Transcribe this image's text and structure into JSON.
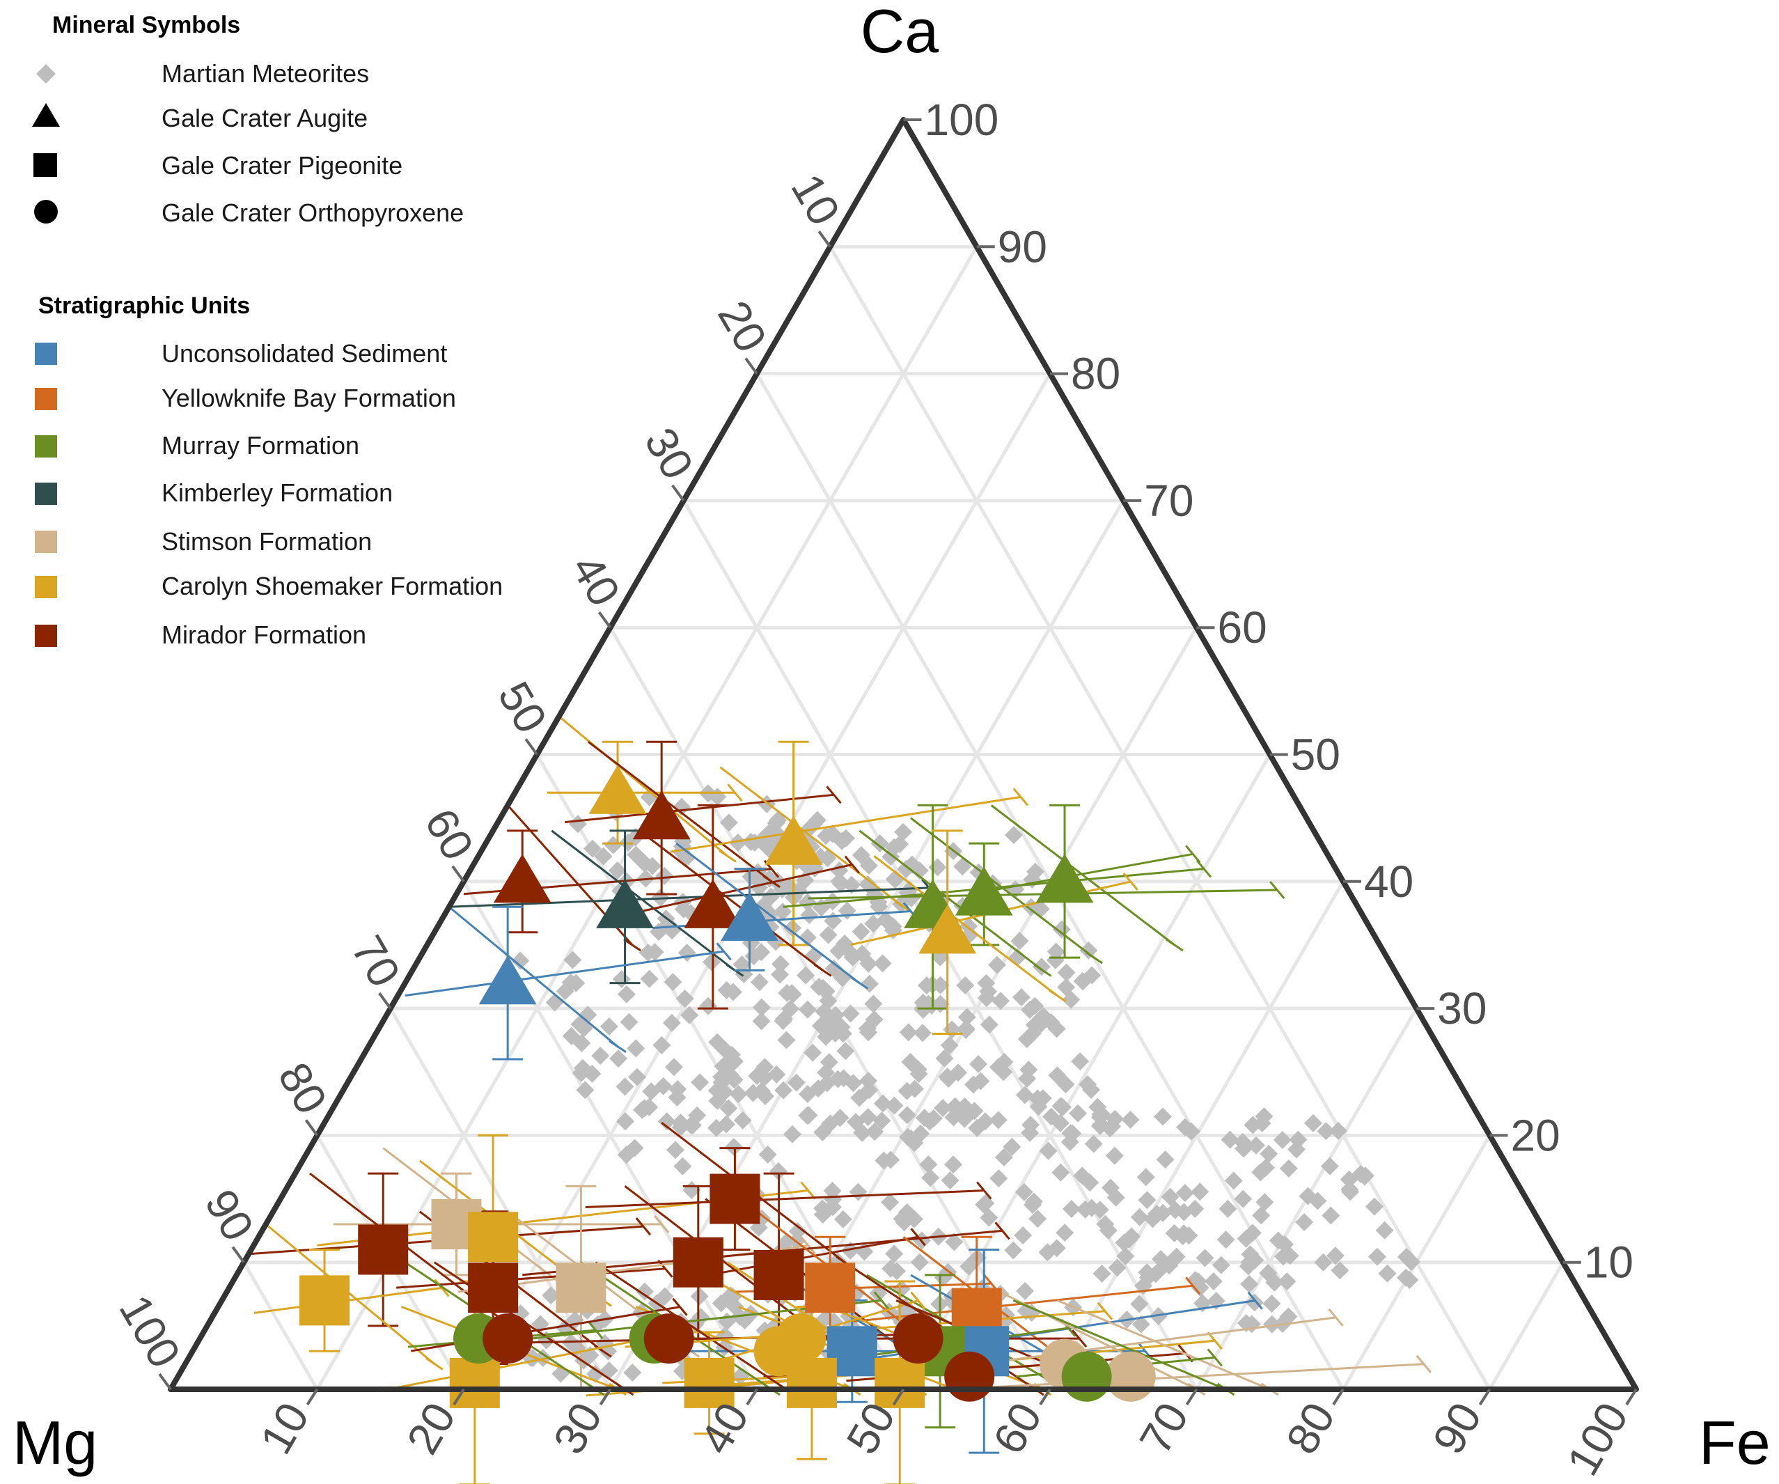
{
  "chart_data": {
    "type": "ternary-scatter",
    "apex_labels": {
      "top": "Ca",
      "left": "Mg",
      "right": "Fe"
    },
    "axis_ticks": [
      "10",
      "20",
      "30",
      "40",
      "50",
      "60",
      "70",
      "80",
      "90",
      "100"
    ],
    "grid": true,
    "legend_position": "top-left",
    "legends": {
      "mineral_symbols": {
        "title": "Mineral Symbols",
        "items": [
          {
            "label": "Martian Meteorites",
            "marker": "diamond",
            "color": "#bdbdbd"
          },
          {
            "label": "Gale Crater Augite",
            "marker": "triangle",
            "color": "#000000"
          },
          {
            "label": "Gale Crater Pigeonite",
            "marker": "square",
            "color": "#000000"
          },
          {
            "label": "Gale Crater Orthopyroxene",
            "marker": "circle",
            "color": "#000000"
          }
        ]
      },
      "stratigraphic_units": {
        "title": "Stratigraphic Units",
        "items": [
          {
            "label": "Unconsolidated Sediment",
            "color": "#4682b4"
          },
          {
            "label": "Yellowknife Bay Formation",
            "color": "#d2691e"
          },
          {
            "label": "Murray Formation",
            "color": "#6b8e23"
          },
          {
            "label": "Kimberley Formation",
            "color": "#2f4f4f"
          },
          {
            "label": "Stimson Formation",
            "color": "#d2b48c"
          },
          {
            "label": "Carolyn Shoemaker Formation",
            "color": "#daa520"
          },
          {
            "label": "Mirador Formation",
            "color": "#8b2500"
          }
        ]
      }
    },
    "points": [
      {
        "unit": "Carolyn Shoemaker Formation",
        "mineral": "Augite",
        "ca": 47,
        "mg": 46,
        "fe": 7
      },
      {
        "unit": "Mirador Formation",
        "mineral": "Augite",
        "ca": 45,
        "mg": 44,
        "fe": 11
      },
      {
        "unit": "Carolyn Shoemaker Formation",
        "mineral": "Augite",
        "ca": 43,
        "mg": 36,
        "fe": 21
      },
      {
        "unit": "Mirador Formation",
        "mineral": "Augite",
        "ca": 40,
        "mg": 56,
        "fe": 4
      },
      {
        "unit": "Kimberley Formation",
        "mineral": "Augite",
        "ca": 38,
        "mg": 50,
        "fe": 12
      },
      {
        "unit": "Mirador Formation",
        "mineral": "Augite",
        "ca": 38,
        "mg": 44,
        "fe": 18
      },
      {
        "unit": "Unconsolidated Sediment",
        "mineral": "Augite",
        "ca": 37,
        "mg": 42,
        "fe": 21
      },
      {
        "unit": "Unconsolidated Sediment",
        "mineral": "Augite",
        "ca": 32,
        "mg": 61,
        "fe": 7
      },
      {
        "unit": "Murray Formation",
        "mineral": "Augite",
        "ca": 38,
        "mg": 29,
        "fe": 33
      },
      {
        "unit": "Murray Formation",
        "mineral": "Augite",
        "ca": 39,
        "mg": 25,
        "fe": 36
      },
      {
        "unit": "Murray Formation",
        "mineral": "Augite",
        "ca": 40,
        "mg": 19,
        "fe": 41
      },
      {
        "unit": "Carolyn Shoemaker Formation",
        "mineral": "Augite",
        "ca": 36,
        "mg": 29,
        "fe": 35
      },
      {
        "unit": "Stimson Formation",
        "mineral": "Pigeonite",
        "ca": 13,
        "mg": 74,
        "fe": 13
      },
      {
        "unit": "Mirador Formation",
        "mineral": "Pigeonite",
        "ca": 11,
        "mg": 80,
        "fe": 9
      },
      {
        "unit": "Carolyn Shoemaker Formation",
        "mineral": "Pigeonite",
        "ca": 12,
        "mg": 72,
        "fe": 16
      },
      {
        "unit": "Carolyn Shoemaker Formation",
        "mineral": "Pigeonite",
        "ca": 7,
        "mg": 86,
        "fe": 7
      },
      {
        "unit": "Mirador Formation",
        "mineral": "Pigeonite",
        "ca": 8,
        "mg": 74,
        "fe": 18
      },
      {
        "unit": "Stimson Formation",
        "mineral": "Pigeonite",
        "ca": 8,
        "mg": 68,
        "fe": 24
      },
      {
        "unit": "Mirador Formation",
        "mineral": "Pigeonite",
        "ca": 15,
        "mg": 54,
        "fe": 31
      },
      {
        "unit": "Mirador Formation",
        "mineral": "Pigeonite",
        "ca": 10,
        "mg": 59,
        "fe": 31
      },
      {
        "unit": "Mirador Formation",
        "mineral": "Pigeonite",
        "ca": 9,
        "mg": 54,
        "fe": 37
      },
      {
        "unit": "Yellowknife Bay Formation",
        "mineral": "Pigeonite",
        "ca": 8,
        "mg": 51,
        "fe": 41
      },
      {
        "unit": "Yellowknife Bay Formation",
        "mineral": "Pigeonite",
        "ca": 6,
        "mg": 42,
        "fe": 52
      },
      {
        "unit": "Unconsolidated Sediment",
        "mineral": "Pigeonite",
        "ca": 3,
        "mg": 43,
        "fe": 54
      },
      {
        "unit": "Unconsolidated Sediment",
        "mineral": "Pigeonite",
        "ca": 3,
        "mg": 52,
        "fe": 45
      },
      {
        "unit": "Murray Formation",
        "mineral": "Pigeonite",
        "ca": 3,
        "mg": 46,
        "fe": 51
      },
      {
        "unit": "Carolyn Shoemaker Formation",
        "mineral": "Pigeonite",
        "ca": 0.5,
        "mg": 79,
        "fe": 20.5
      },
      {
        "unit": "Carolyn Shoemaker Formation",
        "mineral": "Pigeonite",
        "ca": 0.5,
        "mg": 63,
        "fe": 36.5
      },
      {
        "unit": "Carolyn Shoemaker Formation",
        "mineral": "Pigeonite",
        "ca": 0.5,
        "mg": 56,
        "fe": 43.5
      },
      {
        "unit": "Carolyn Shoemaker Formation",
        "mineral": "Pigeonite",
        "ca": 0.5,
        "mg": 50,
        "fe": 49.5
      },
      {
        "unit": "Murray Formation",
        "mineral": "Orthopyroxene",
        "ca": 4,
        "mg": 77,
        "fe": 19
      },
      {
        "unit": "Mirador Formation",
        "mineral": "Orthopyroxene",
        "ca": 4,
        "mg": 75,
        "fe": 21
      },
      {
        "unit": "Murray Formation",
        "mineral": "Orthopyroxene",
        "ca": 4,
        "mg": 65,
        "fe": 31
      },
      {
        "unit": "Mirador Formation",
        "mineral": "Orthopyroxene",
        "ca": 4,
        "mg": 64,
        "fe": 32
      },
      {
        "unit": "Carolyn Shoemaker Formation",
        "mineral": "Orthopyroxene",
        "ca": 4,
        "mg": 55,
        "fe": 41
      },
      {
        "unit": "Carolyn Shoemaker Formation",
        "mineral": "Orthopyroxene",
        "ca": 3,
        "mg": 57,
        "fe": 40
      },
      {
        "unit": "Mirador Formation",
        "mineral": "Orthopyroxene",
        "ca": 4,
        "mg": 47,
        "fe": 49
      },
      {
        "unit": "Mirador Formation",
        "mineral": "Orthopyroxene",
        "ca": 1,
        "mg": 45,
        "fe": 54
      },
      {
        "unit": "Stimson Formation",
        "mineral": "Orthopyroxene",
        "ca": 2,
        "mg": 38,
        "fe": 60
      },
      {
        "unit": "Stimson Formation",
        "mineral": "Orthopyroxene",
        "ca": 1,
        "mg": 34,
        "fe": 65
      },
      {
        "unit": "Murray Formation",
        "mineral": "Orthopyroxene",
        "ca": 1,
        "mg": 37,
        "fe": 62
      }
    ],
    "meteorite_clusters": [
      {
        "ca": [
          35,
          47
        ],
        "mg": [
          30,
          50
        ]
      },
      {
        "ca": [
          30,
          44
        ],
        "mg": [
          20,
          40
        ]
      },
      {
        "ca": [
          20,
          35
        ],
        "mg": [
          40,
          60
        ]
      },
      {
        "ca": [
          12,
          25
        ],
        "mg": [
          25,
          60
        ]
      },
      {
        "ca": [
          5,
          15
        ],
        "mg": [
          20,
          55
        ]
      },
      {
        "ca": [
          1,
          8
        ],
        "mg": [
          45,
          75
        ]
      },
      {
        "ca": [
          8,
          22
        ],
        "mg": [
          10,
          30
        ]
      },
      {
        "ca": [
          20,
          32
        ],
        "mg": [
          25,
          45
        ]
      }
    ]
  }
}
